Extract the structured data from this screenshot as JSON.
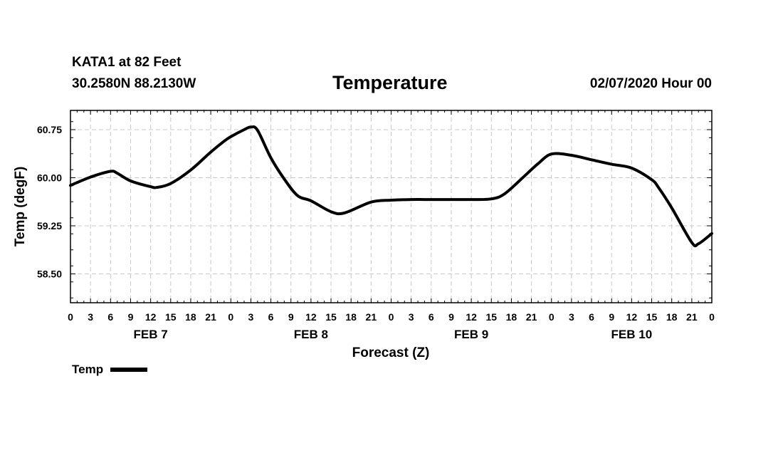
{
  "header": {
    "station": "KATA1 at 82 Feet",
    "coordinates": "30.2580N 88.2130W",
    "run_time": "02/07/2020 Hour 00"
  },
  "legend": {
    "label": "Temp"
  },
  "chart_data": {
    "type": "line",
    "title": "Temperature",
    "xlabel": "Forecast (Z)",
    "ylabel": "Temp (degF)",
    "x_unit": "forecast hour",
    "xlim": [
      0,
      96
    ],
    "ylim": [
      58.05,
      61.05
    ],
    "y_ticks": [
      58.5,
      59.25,
      60.0,
      60.75
    ],
    "y_tick_labels": [
      "58.50",
      "59.25",
      "60.00",
      "60.75"
    ],
    "x_ticks": [
      0,
      3,
      6,
      9,
      12,
      15,
      18,
      21,
      24,
      27,
      30,
      33,
      36,
      39,
      42,
      45,
      48,
      51,
      54,
      57,
      60,
      63,
      66,
      69,
      72,
      75,
      78,
      81,
      84,
      87,
      90,
      93,
      96
    ],
    "x_tick_labels": [
      "0",
      "3",
      "6",
      "9",
      "12",
      "15",
      "18",
      "21",
      "0",
      "3",
      "6",
      "9",
      "12",
      "15",
      "18",
      "21",
      "0",
      "3",
      "6",
      "9",
      "12",
      "15",
      "18",
      "21",
      "0",
      "3",
      "6",
      "9",
      "12",
      "15",
      "18",
      "21",
      "0"
    ],
    "day_labels": [
      {
        "label": "FEB 7",
        "hour": 12
      },
      {
        "label": "FEB 8",
        "hour": 36
      },
      {
        "label": "FEB 9",
        "hour": 60
      },
      {
        "label": "FEB 10",
        "hour": 84
      }
    ],
    "grid": true,
    "series": [
      {
        "name": "Temp",
        "color": "#000000",
        "x": [
          0,
          3,
          6,
          7,
          9,
          12,
          13,
          15,
          18,
          21,
          23,
          24,
          26,
          27,
          28,
          30,
          32,
          34,
          36,
          39,
          41,
          45,
          48,
          51,
          54,
          57,
          60,
          63,
          65,
          68,
          70,
          72,
          75,
          78,
          81,
          84,
          87,
          88,
          90,
          93,
          94,
          96
        ],
        "y": [
          59.88,
          60.01,
          60.1,
          60.07,
          59.95,
          59.86,
          59.85,
          59.91,
          60.12,
          60.4,
          60.57,
          60.64,
          60.75,
          60.79,
          60.74,
          60.31,
          59.98,
          59.72,
          59.64,
          59.47,
          59.45,
          59.62,
          59.65,
          59.66,
          59.66,
          59.66,
          59.66,
          59.67,
          59.75,
          60.03,
          60.22,
          60.37,
          60.35,
          60.28,
          60.21,
          60.15,
          59.97,
          59.85,
          59.53,
          58.99,
          58.97,
          59.13
        ]
      }
    ]
  }
}
